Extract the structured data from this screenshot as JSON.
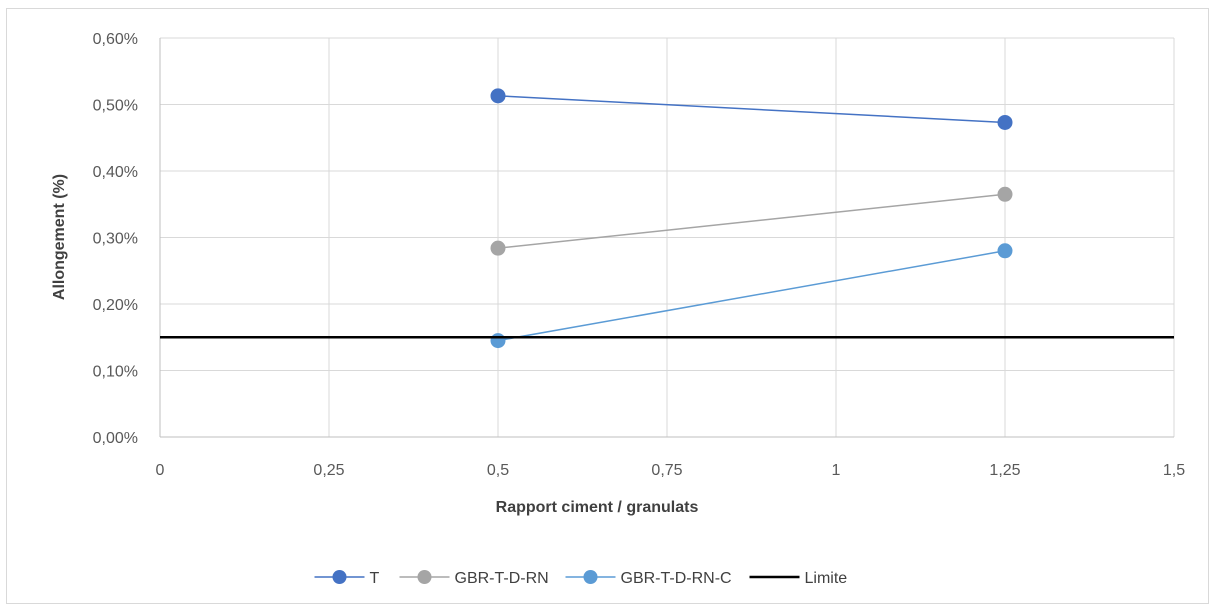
{
  "chart_data": {
    "type": "scatter",
    "title": "",
    "xlabel": "Rapport ciment / granulats",
    "ylabel": "Allongement (%)",
    "xlim": [
      0,
      1.5
    ],
    "ylim": [
      0,
      0.6
    ],
    "x_ticks": [
      "0",
      "0,25",
      "0,5",
      "0,75",
      "1",
      "1,25",
      "1,5"
    ],
    "y_ticks": [
      "0,00%",
      "0,10%",
      "0,20%",
      "0,30%",
      "0,40%",
      "0,50%",
      "0,60%"
    ],
    "grid": true,
    "legend_position": "bottom",
    "series": [
      {
        "name": "T",
        "color": "#4472c4",
        "x": [
          0.5,
          1.25
        ],
        "y": [
          0.513,
          0.473
        ],
        "markers": true
      },
      {
        "name": "GBR-T-D-RN",
        "color": "#a5a5a5",
        "x": [
          0.5,
          1.25
        ],
        "y": [
          0.284,
          0.365
        ],
        "markers": true
      },
      {
        "name": "GBR-T-D-RN-C",
        "color": "#5b9bd5",
        "x": [
          0.5,
          1.25
        ],
        "y": [
          0.145,
          0.28
        ],
        "markers": true
      },
      {
        "name": "Limite",
        "color": "#000000",
        "x": [
          0,
          1.5
        ],
        "y": [
          0.15,
          0.15
        ],
        "markers": false
      }
    ]
  }
}
